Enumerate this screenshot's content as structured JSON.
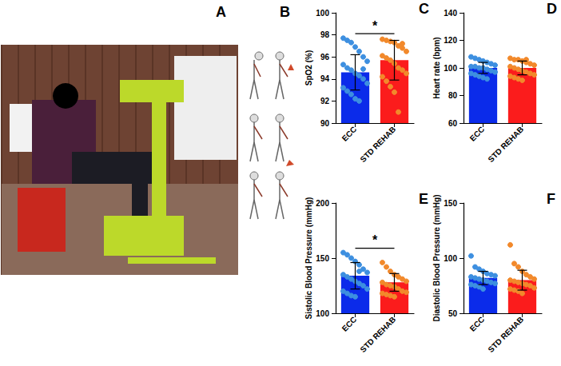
{
  "photo": {
    "panel": "A"
  },
  "illustration": {
    "panel": "B"
  },
  "chart_data": [
    {
      "panel": "C",
      "type": "bar",
      "y_label": "SpO2 (%)",
      "categories": [
        "ECC",
        "STD REHAB"
      ],
      "ylim": [
        90,
        100
      ],
      "yticks": [
        90,
        92,
        94,
        96,
        98,
        100
      ],
      "grid": false,
      "series": [
        {
          "type": "bar",
          "colors": [
            "#0b2bea",
            "#fb1c1c"
          ],
          "values": [
            94.6,
            95.7
          ],
          "errors": [
            1.6,
            1.8
          ]
        },
        {
          "type": "scatter",
          "colors": [
            "#3d8fe0",
            "#f2892b"
          ],
          "values": [
            [
              97.7,
              97.5,
              97.3,
              96.9,
              96.5,
              96.0,
              95.6,
              95.3,
              95.0,
              94.8,
              94.5,
              94.3,
              94.0,
              93.6,
              93.2,
              92.9,
              92.6,
              92.2,
              92.0,
              94.9
            ],
            [
              97.6,
              97.5,
              97.4,
              97.3,
              97.0,
              96.8,
              96.5,
              96.1,
              95.9,
              95.7,
              95.4,
              95.0,
              94.8,
              94.5,
              94.2,
              93.8,
              93.3,
              92.8,
              91.0,
              97.2
            ]
          ]
        }
      ],
      "annotations": [
        {
          "text": "*",
          "between": [
            "ECC",
            "STD REHAB"
          ]
        }
      ]
    },
    {
      "panel": "D",
      "type": "bar",
      "y_label": "Heart rate (bpm)",
      "categories": [
        "ECC",
        "STD REHAB"
      ],
      "ylim": [
        60,
        140
      ],
      "yticks": [
        60,
        80,
        100,
        120,
        140
      ],
      "grid": false,
      "series": [
        {
          "type": "bar",
          "colors": [
            "#0b2bea",
            "#fb1c1c"
          ],
          "values": [
            100,
            100
          ],
          "errors": [
            4,
            5
          ]
        },
        {
          "type": "scatter",
          "colors": [
            "#3d8fe0",
            "#f2892b"
          ],
          "values": [
            [
              108,
              107,
              106,
              105,
              104,
              103,
              102,
              101,
              101,
              100,
              100,
              99,
              98,
              97,
              96,
              95,
              94,
              93,
              92
            ],
            [
              107,
              106,
              106,
              105,
              104,
              103,
              102,
              101,
              100,
              99,
              98,
              97,
              96,
              95,
              94,
              93,
              92,
              91,
              106
            ]
          ]
        }
      ],
      "annotations": []
    },
    {
      "panel": "E",
      "type": "bar",
      "y_label": "Sistolic Blood Pressure (mmHg)",
      "categories": [
        "ECC",
        "STD REHAB"
      ],
      "ylim": [
        100,
        200
      ],
      "yticks": [
        100,
        150,
        200
      ],
      "grid": false,
      "series": [
        {
          "type": "bar",
          "colors": [
            "#0b2bea",
            "#fb1c1c"
          ],
          "values": [
            134,
            128
          ],
          "errors": [
            12,
            8
          ]
        },
        {
          "type": "scatter",
          "colors": [
            "#3d8fe0",
            "#f2892b"
          ],
          "values": [
            [
              155,
              153,
              150,
              147,
              144,
              140,
              137,
              135,
              133,
              131,
              129,
              127,
              125,
              122,
              120,
              118,
              116,
              115,
              138
            ],
            [
              146,
              142,
              138,
              135,
              133,
              131,
              129,
              128,
              126,
              125,
              124,
              122,
              120,
              119,
              118,
              117,
              116,
              115
            ]
          ]
        }
      ],
      "annotations": [
        {
          "text": "*",
          "between": [
            "ECC",
            "STD REHAB"
          ]
        }
      ]
    },
    {
      "panel": "F",
      "type": "bar",
      "y_label": "Diastolic Blood Pressure (mmHg)",
      "categories": [
        "ECC",
        "STD REHAB"
      ],
      "ylim": [
        50,
        150
      ],
      "yticks": [
        50,
        100,
        150
      ],
      "grid": false,
      "series": [
        {
          "type": "bar",
          "colors": [
            "#0b2bea",
            "#fb1c1c"
          ],
          "values": [
            82,
            80
          ],
          "errors": [
            6,
            9
          ]
        },
        {
          "type": "scatter",
          "colors": [
            "#3d8fe0",
            "#f2892b"
          ],
          "values": [
            [
              102,
              92,
              90,
              88,
              86,
              85,
              84,
              83,
              82,
              81,
              80,
              79,
              78,
              77,
              76,
              75,
              74,
              72
            ],
            [
              112,
              95,
              92,
              88,
              85,
              83,
              81,
              80,
              79,
              78,
              77,
              76,
              75,
              73,
              72,
              71,
              70,
              68
            ]
          ]
        }
      ],
      "annotations": []
    }
  ]
}
